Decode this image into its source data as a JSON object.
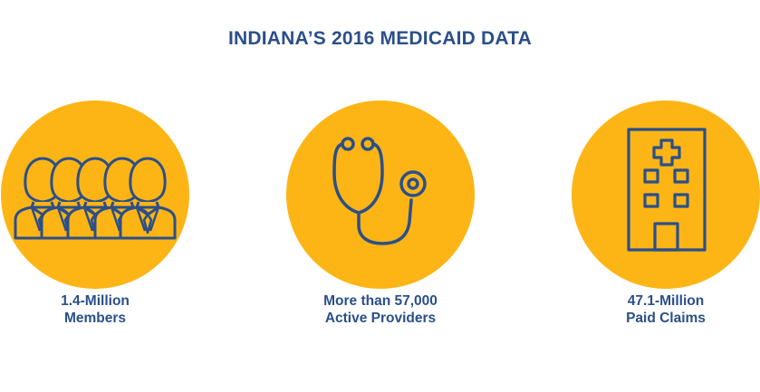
{
  "title": "INDIANA’S 2016 MEDICAID DATA",
  "colors": {
    "accent": "#fdb515",
    "text": "#2b4f8a",
    "icon": "#2b4f8a"
  },
  "stats": [
    {
      "icon": "people-group-icon",
      "line1": "1.4-Million",
      "line2": "Members"
    },
    {
      "icon": "stethoscope-icon",
      "line1": "More than 57,000",
      "line2": "Active Providers"
    },
    {
      "icon": "hospital-building-icon",
      "line1": "47.1-Million",
      "line2": "Paid Claims"
    }
  ]
}
